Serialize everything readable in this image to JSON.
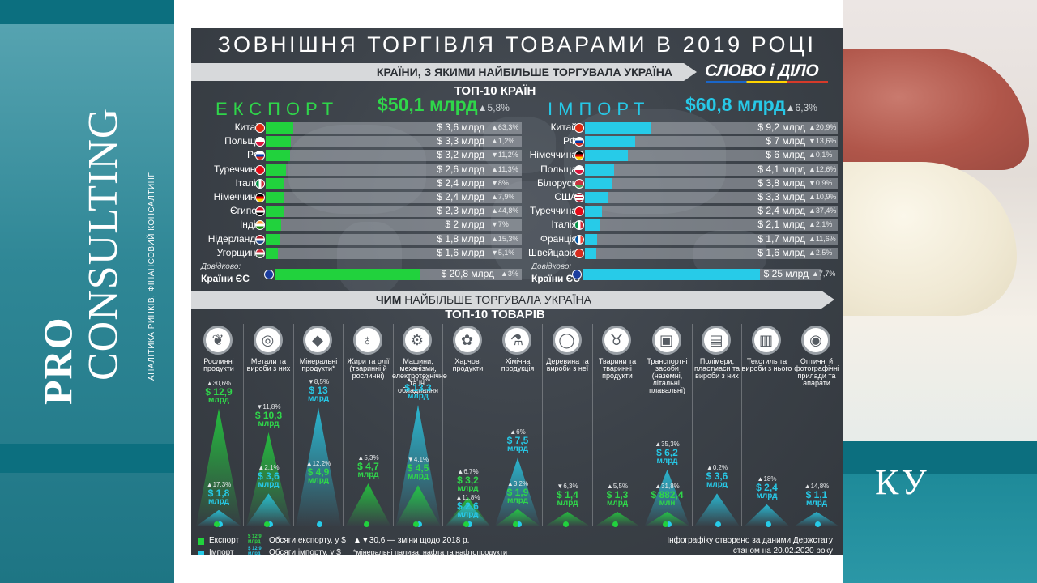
{
  "background": {
    "brand_pro": "PRO",
    "brand_consulting": "CONSULTING",
    "brand_tagline": "АНАЛІТИКА РИНКІВ, ФІНАНСОВИЙ КОНСАЛТИНГ",
    "right_text": "КУ"
  },
  "infographic": {
    "title": "ЗОВНІШНЯ ТОРГІВЛЯ ТОВАРАМИ В 2019 РОЦІ",
    "banner_countries": "КРАЇНИ, З ЯКИМИ НАЙБІЛЬШЕ ТОРГУВАЛА УКРАЇНА",
    "banner_products_bold": "ЧИМ",
    "banner_products_rest": " НАЙБІЛЬШЕ ТОРГУВАЛА УКРАЇНА",
    "logo_text": "СЛОВО і ДІЛО",
    "top_countries_label": "ТОП-10 КРАЇН",
    "top_products_label": "ТОП-10 ТОВАРІВ",
    "export_label": "ЕКСПОРТ",
    "import_label": "ІМПОРТ",
    "export_total": "$50,1 млрд",
    "export_total_change": "▲5,8%",
    "import_total": "$60,8 млрд",
    "import_total_change": "▲6,3%",
    "eu_note": "Довідково:",
    "eu_name": "Країни ЄС",
    "eu_export_value": "$ 20,8 млрд",
    "eu_export_change": "▲3%",
    "eu_import_value": "$ 25 млрд",
    "eu_import_change": "▲7,7%",
    "legend": {
      "export": "Експорт",
      "import": "Імпорт",
      "mini_export": "$ 12,9 млрд",
      "mini_import": "$ 12,9 млрд",
      "export_volume": "Обсяги експорту, у $",
      "import_volume": "Обсяги імпорту, у $",
      "change_note": "▲▼30,6 — зміни щодо 2018 р.",
      "footnote": "*мінеральні палива, нафта та нафтопродукти",
      "source_line1": "Інфографіку створено за даними Держстату",
      "source_line2": "станом на 20.02.2020 року"
    }
  },
  "colors": {
    "export": "#21d23d",
    "import": "#27cbe8",
    "panel": "#3b4148"
  },
  "chart_data": [
    {
      "type": "bar",
      "title": "ЕКСПОРТ",
      "unit": "млрд $",
      "categories": [
        "Китай",
        "Польща",
        "РФ",
        "Туреччина",
        "Італія",
        "Німеччина",
        "Єгипет",
        "Індія",
        "Нідерланди",
        "Угорщина"
      ],
      "values": [
        3.6,
        3.3,
        3.2,
        2.6,
        2.4,
        2.4,
        2.3,
        2.0,
        1.8,
        1.6
      ],
      "value_labels": [
        "$ 3,6 млрд",
        "$ 3,3 млрд",
        "$ 3,2 млрд",
        "$ 2,6 млрд",
        "$ 2,4 млрд",
        "$ 2,4 млрд",
        "$ 2,3 млрд",
        "$ 2 млрд",
        "$ 1,8 млрд",
        "$ 1,6 млрд"
      ],
      "changes": [
        "▲63,3%",
        "▲1,2%",
        "▼11,2%",
        "▲11,3%",
        "▼8%",
        "▲7,9%",
        "▲44,8%",
        "▼7%",
        "▲15,3%",
        "▼5,1%"
      ],
      "flags": [
        "cn",
        "pl",
        "ru",
        "tr",
        "it",
        "de",
        "eg",
        "in",
        "nl",
        "hu"
      ]
    },
    {
      "type": "bar",
      "title": "ІМПОРТ",
      "unit": "млрд $",
      "categories": [
        "Китай",
        "РФ",
        "Німеччина",
        "Польща",
        "Білорусь",
        "США",
        "Туреччина",
        "Італія",
        "Франція",
        "Швейцарія"
      ],
      "values": [
        9.2,
        7.0,
        6.0,
        4.1,
        3.8,
        3.3,
        2.4,
        2.1,
        1.7,
        1.6
      ],
      "value_labels": [
        "$ 9,2 млрд",
        "$ 7 млрд",
        "$ 6 млрд",
        "$ 4,1 млрд",
        "$ 3,8 млрд",
        "$ 3,3 млрд",
        "$ 2,4 млрд",
        "$ 2,1 млрд",
        "$ 1,7 млрд",
        "$ 1,6 млрд"
      ],
      "changes": [
        "▲20,9%",
        "▼13,6%",
        "▲0,1%",
        "▲12,6%",
        "▼0,9%",
        "▲10,9%",
        "▲37,4%",
        "▲2,1%",
        "▲11,6%",
        "▲2,5%"
      ],
      "flags": [
        "cn",
        "ru",
        "de",
        "pl",
        "by",
        "us",
        "tr",
        "it",
        "fr",
        "ch"
      ]
    },
    {
      "type": "bar",
      "title": "ТОП-10 ТОВАРІВ",
      "unit": "млрд $",
      "categories": [
        "Рослинні продукти",
        "Метали та вироби з них",
        "Мінеральні продукти*",
        "Жири та олії (тваринні й рослинні)",
        "Машини, механізми, електротехнічне та ін. обладнання",
        "Харчові продукти",
        "Хімічна продукція",
        "Деревина та вироби з неї",
        "Тварини та тваринні продукти",
        "Транспортні засоби (наземні, літальні, плавальні)",
        "Полімери, пластмаси та вироби з них",
        "Текстиль та вироби з нього",
        "Оптичні й фотографічні прилади та апарати"
      ],
      "icons": [
        "leaf-icon",
        "metal-roll-icon",
        "crystal-icon",
        "oil-bottle-icon",
        "machine-icon",
        "food-icon",
        "chemistry-flask-icon",
        "wood-log-icon",
        "cow-icon",
        "bus-icon",
        "polymer-bottles-icon",
        "textile-icon",
        "camera-icon"
      ],
      "series": [
        {
          "name": "Експорт",
          "values": [
            12.9,
            10.3,
            null,
            4.7,
            4.5,
            3.2,
            1.9,
            1.4,
            1.3,
            0.8824,
            null,
            null,
            null
          ],
          "labels": [
            "$ 12,9",
            "$ 10,3",
            "",
            "$ 4,7",
            "$ 4,5",
            "$ 3,2",
            "$ 1,9",
            "$ 1,4",
            "$ 1,3",
            "$ 882,4",
            "",
            "",
            ""
          ],
          "units": [
            "млрд",
            "млрд",
            "",
            "млрд",
            "млрд",
            "млрд",
            "млрд",
            "млрд",
            "млрд",
            "млн",
            "",
            "",
            ""
          ],
          "changes": [
            "▲30,6%",
            "▼11,8%",
            "",
            "▲5,3%",
            "▼4,1%",
            "▲6,7%",
            "▲3,2%",
            "▼6,3%",
            "▲5,5%",
            "▲31,8%",
            "",
            "",
            ""
          ]
        },
        {
          "name": "Імпорт",
          "values": [
            1.8,
            3.6,
            13.0,
            null,
            13.3,
            2.6,
            7.5,
            null,
            null,
            6.2,
            3.6,
            2.4,
            1.1
          ],
          "labels": [
            "$ 1,8",
            "$ 3,6",
            "$ 13",
            "",
            "$ 13,3",
            "$ 2,6",
            "$ 7,5",
            "",
            "",
            "$ 6,2",
            "$ 3,6",
            "$ 2,4",
            "$ 1,1"
          ],
          "units": [
            "млрд",
            "млрд",
            "млрд",
            "",
            "млрд",
            "млрд",
            "млрд",
            "",
            "",
            "млрд",
            "млрд",
            "млрд",
            "млрд"
          ],
          "changes": [
            "▲17,3%",
            "▲2,1%",
            "▼8,5%",
            "",
            "▲11,3%",
            "▲11,8%",
            "▲6%",
            "",
            "",
            "▲35,3%",
            "▲0,2%",
            "▲18%",
            "▲14,8%"
          ]
        }
      ],
      "extra_labels": [
        {
          "column": 2,
          "text": "$ 4,9",
          "unit": "млрд",
          "change": "▲12,2%",
          "series": "Експорт"
        }
      ]
    }
  ]
}
